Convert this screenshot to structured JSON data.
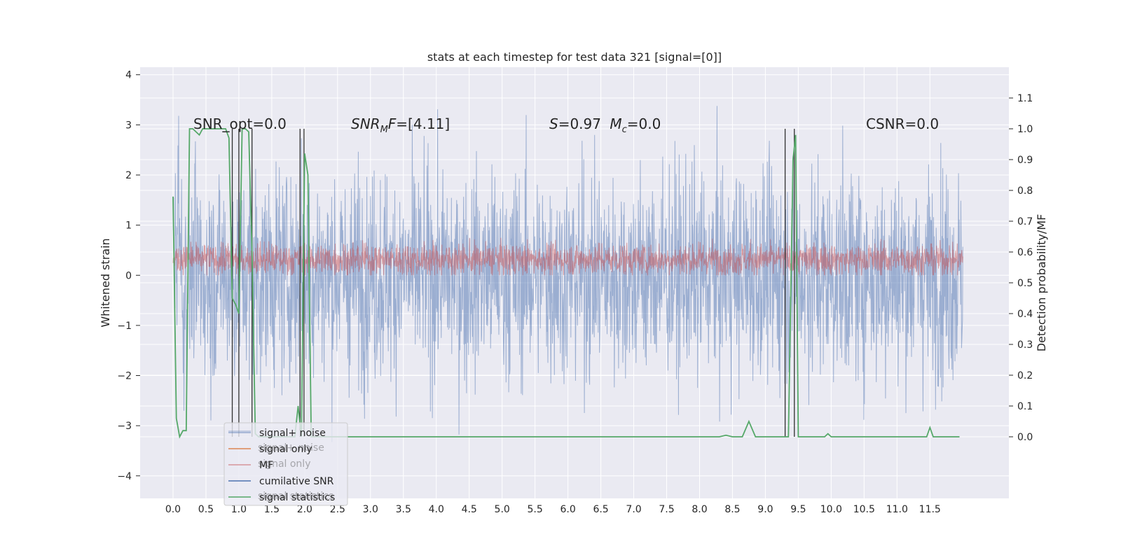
{
  "chart_data": {
    "type": "line",
    "title": "stats at each timestep for test data 321 [signal=[0]]",
    "xlabel": "",
    "ylabel": "Whitened strain",
    "ylabel_right": "Detection probability/MF",
    "xlim": [
      -0.5,
      12.7
    ],
    "ylim": [
      -4.45,
      4.15
    ],
    "ylim_right": [
      -0.2,
      1.2
    ],
    "x_ticks": [
      0.0,
      0.5,
      1.0,
      1.5,
      2.0,
      2.5,
      3.0,
      3.5,
      4.0,
      4.5,
      5.0,
      5.5,
      6.0,
      6.5,
      7.0,
      7.5,
      8.0,
      8.5,
      9.0,
      9.5,
      10.0,
      10.5,
      11.0,
      11.5
    ],
    "x_tick_labels": [
      "0.0",
      "0.5",
      "1.0",
      "1.5",
      "2.0",
      "2.5",
      "3.0",
      "3.5",
      "4.0",
      "4.5",
      "5.0",
      "5.5",
      "6.0",
      "6.5",
      "7.0",
      "7.5",
      "8.0",
      "8.5",
      "9.0",
      "9.5",
      "10.0",
      "10.5",
      "11.0",
      "11.5"
    ],
    "y_ticks": [
      -4,
      -3,
      -2,
      -1,
      0,
      1,
      2,
      3,
      4
    ],
    "y_tick_labels": [
      "−4",
      "−3",
      "−2",
      "−1",
      "0",
      "1",
      "2",
      "3",
      "4"
    ],
    "y_ticks_right": [
      0.0,
      0.1,
      0.2,
      0.3,
      0.4,
      0.5,
      0.6,
      0.7,
      0.8,
      0.9,
      1.0,
      1.1
    ],
    "y_tick_labels_right": [
      "0.0",
      "0.1",
      "0.2",
      "0.3",
      "0.4",
      "0.5",
      "0.6",
      "0.7",
      "0.8",
      "0.9",
      "1.0",
      "1.1"
    ],
    "grid": true,
    "legend_placement": "lower-left",
    "annotations": [
      {
        "text": "SNR_opt=0.0",
        "x": 0.2,
        "y": 3.0
      },
      {
        "text": "SNR_MF=[4.11]",
        "x": 2.6,
        "y": 3.0
      },
      {
        "text": "S=0.97   M_c=0.0",
        "x": 5.6,
        "y": 3.0
      },
      {
        "text": "CSNR=0.0",
        "x": 10.4,
        "y": 3.0
      }
    ],
    "series": [
      {
        "name": "signal+ noise",
        "color": "#4c72b0",
        "axis": "left",
        "x_range": [
          0.0,
          12.0
        ],
        "y_min": -3.95,
        "y_max": 3.8
      },
      {
        "name": "signal only",
        "color": "#dd8452",
        "axis": "left",
        "x_range": [
          0.0,
          12.0
        ],
        "values_note": "0"
      },
      {
        "name": "MF",
        "color": "#c44e52",
        "axis": "left",
        "x_range": [
          0.0,
          12.0
        ],
        "y_min": 0.0,
        "y_max": 0.92
      },
      {
        "name": "cumilative SNR",
        "color": "#4c72b0",
        "axis": "right",
        "x_range": [
          0.0,
          12.0
        ]
      },
      {
        "name": "signal statistics",
        "color": "#55a868",
        "axis": "right",
        "x": [
          0.0,
          0.05,
          0.1,
          0.15,
          0.2,
          0.25,
          0.3,
          0.35,
          0.4,
          0.45,
          0.5,
          0.55,
          0.6,
          0.65,
          0.7,
          0.75,
          0.8,
          0.85,
          0.9,
          0.95,
          1.0,
          1.05,
          1.1,
          1.15,
          1.2,
          1.25,
          1.3,
          1.4,
          1.5,
          1.6,
          1.7,
          1.8,
          1.85,
          1.9,
          1.95,
          2.0,
          2.05,
          2.1,
          2.2,
          2.4,
          2.6,
          2.8,
          3.0,
          3.2,
          3.4,
          3.6,
          3.8,
          4.0,
          4.2,
          4.5,
          5.0,
          5.5,
          6.0,
          6.5,
          7.0,
          7.5,
          8.0,
          8.3,
          8.4,
          8.5,
          8.65,
          8.75,
          8.85,
          9.0,
          9.2,
          9.3,
          9.35,
          9.42,
          9.46,
          9.5,
          9.8,
          9.9,
          9.95,
          10.0,
          10.5,
          11.0,
          11.3,
          11.45,
          11.5,
          11.55,
          11.7,
          11.9,
          11.95
        ],
        "values": [
          0.78,
          0.06,
          0.0,
          0.02,
          0.02,
          1.0,
          1.0,
          0.99,
          0.98,
          1.0,
          1.0,
          1.0,
          1.0,
          1.0,
          1.0,
          1.0,
          1.0,
          0.97,
          0.45,
          0.43,
          0.4,
          1.0,
          1.0,
          0.99,
          0.6,
          0.01,
          0.0,
          0.0,
          0.0,
          0.0,
          0.0,
          0.0,
          0.0,
          0.1,
          0.0,
          0.92,
          0.85,
          0.0,
          0.0,
          0.0,
          0.0,
          0.0,
          0.0,
          0.0,
          0.0,
          0.0,
          0.0,
          0.0,
          0.0,
          0.0,
          0.0,
          0.0,
          0.0,
          0.0,
          0.0,
          0.0,
          0.0,
          0.0,
          0.005,
          0.0,
          0.0,
          0.05,
          0.0,
          0.0,
          0.0,
          0.0,
          0.0,
          0.9,
          0.98,
          0.0,
          0.0,
          0.0,
          0.01,
          0.0,
          0.0,
          0.0,
          0.0,
          0.0,
          0.03,
          0.0,
          0.0,
          0.0,
          0.0
        ]
      },
      {
        "name": "threshold markers",
        "color": "#303030",
        "axis": "right",
        "x": [
          0.9,
          1.0,
          1.2,
          1.93,
          1.99,
          9.3,
          9.44
        ],
        "values": [
          1.0,
          1.0,
          1.0,
          1.0,
          1.0,
          1.0,
          1.0
        ]
      }
    ],
    "legend": {
      "entries": [
        {
          "label": "signal+ noise",
          "color": "#4c72b0"
        },
        {
          "label": "signal only",
          "color": "#dd8452"
        },
        {
          "label": "MF",
          "color": "#c44e52"
        },
        {
          "label": "cumilative SNR",
          "color": "#4c72b0"
        },
        {
          "label": "signal statistics",
          "color": "#55a868"
        }
      ],
      "ghost_entries": [
        "signal+ noise",
        "signal only",
        "signal statistics"
      ]
    }
  }
}
